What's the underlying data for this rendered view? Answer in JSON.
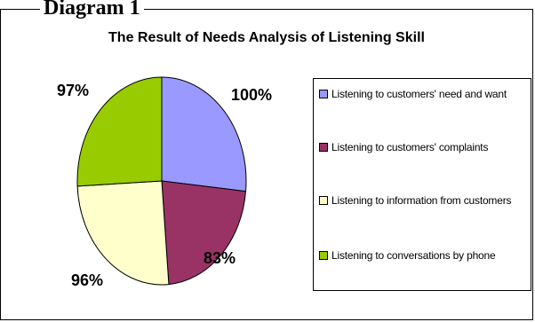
{
  "diagram_label": "Diagram 1",
  "chart_data": {
    "type": "pie",
    "title": "The Result of Needs Analysis of Listening Skill",
    "categories": [
      "Listening to customers' need and want",
      "Listening to customers' complaints",
      "Listening to information from customers",
      "Listening to conversations by phone"
    ],
    "values": [
      100,
      83,
      96,
      97
    ],
    "value_labels": [
      "100%",
      "83%",
      "96%",
      "97%"
    ],
    "colors": [
      "#9999ff",
      "#993366",
      "#ffffcc",
      "#99cc00"
    ],
    "legend_position": "right"
  }
}
